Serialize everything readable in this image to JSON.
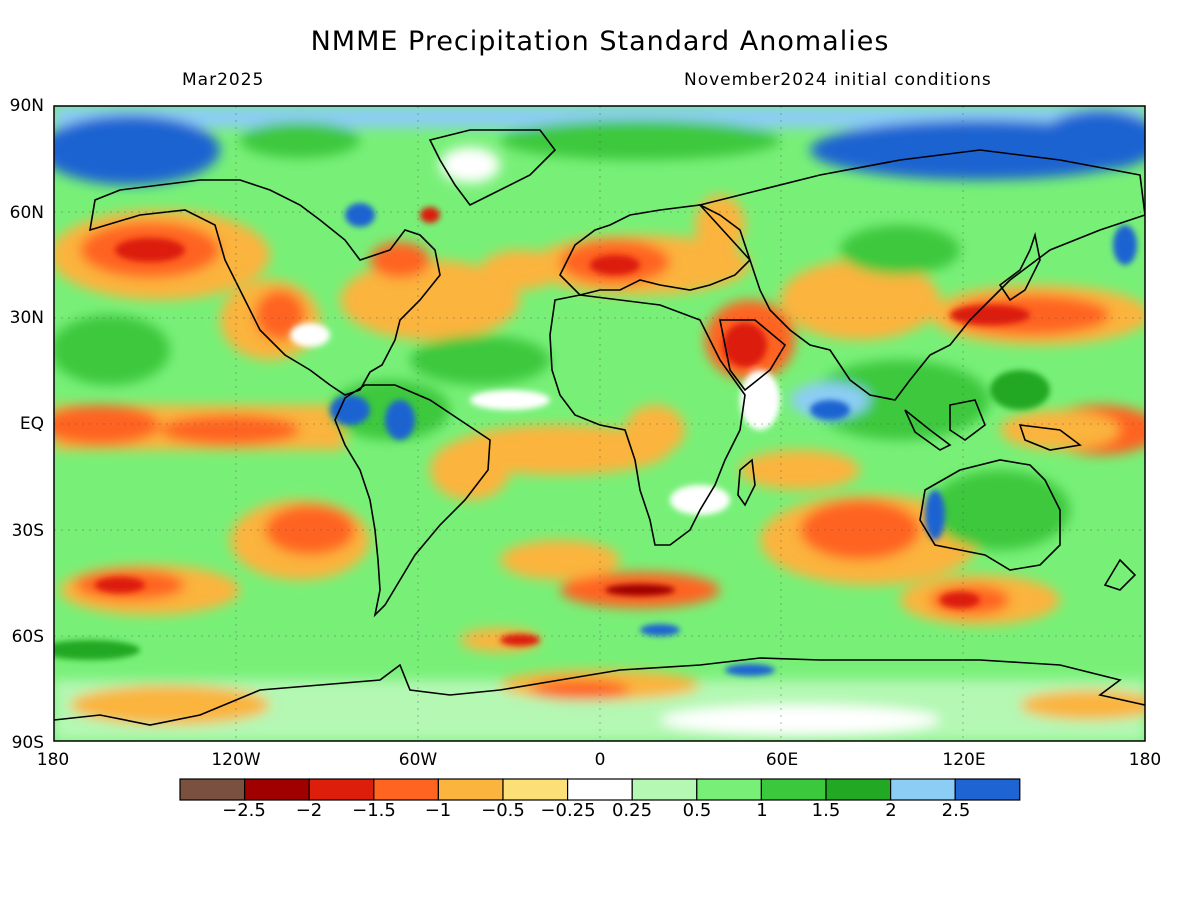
{
  "header": {
    "title": "NMME Precipitation Standard Anomalies",
    "valid_month": "Mar2025",
    "initial_conditions": "November2024 initial conditions"
  },
  "map": {
    "projection": "equirectangular global",
    "lat_labels": [
      "90N",
      "60N",
      "30N",
      "EQ",
      "30S",
      "60S",
      "90S"
    ],
    "lon_labels": [
      "180",
      "120W",
      "60W",
      "0",
      "60E",
      "120E",
      "180"
    ],
    "regions": [
      {
        "name": "Arctic / high latitudes",
        "anomaly": 2.5
      },
      {
        "name": "North Pacific off Alaska",
        "anomaly": -1.5
      },
      {
        "name": "Southern United States / Mexico",
        "anomaly": -1
      },
      {
        "name": "Mediterranean / Middle East",
        "anomaly": -1.5
      },
      {
        "name": "Arabian Peninsula",
        "anomaly": -2
      },
      {
        "name": "Western North Pacific / Japan",
        "anomaly": -1.5
      },
      {
        "name": "Equatorial central-eastern Pacific",
        "anomaly": -1
      },
      {
        "name": "Maritime Continent",
        "anomaly": 1.5
      },
      {
        "name": "Northern South America / Amazon",
        "anomaly": 2.5
      },
      {
        "name": "South Indian Ocean",
        "anomaly": -1.5
      },
      {
        "name": "Southern Ocean",
        "anomaly": 1
      }
    ]
  },
  "colorbar": {
    "labels": [
      "−2.5",
      "−2",
      "−1.5",
      "−1",
      "−0.5",
      "−0.25",
      "0.25",
      "0.5",
      "1",
      "1.5",
      "2",
      "2.5"
    ],
    "colors": [
      "#7a5040",
      "#a00000",
      "#dc1e0a",
      "#ff6420",
      "#fbb43e",
      "#fddf78",
      "#ffffff",
      "#b4f8b4",
      "#78f078",
      "#3cc83c",
      "#22a822",
      "#8ccdf5",
      "#1e64d2"
    ]
  }
}
